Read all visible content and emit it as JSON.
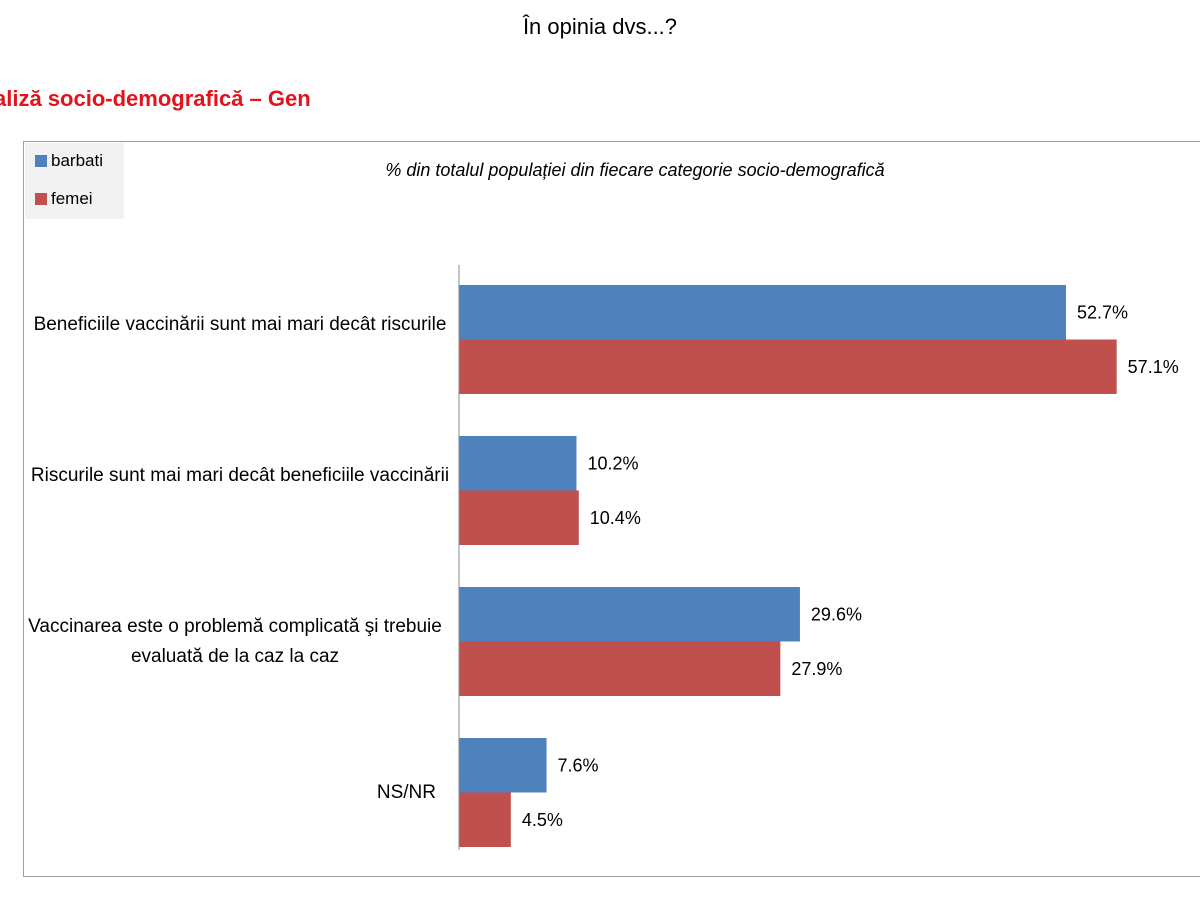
{
  "page_title": "În opinia dvs...?",
  "section_title": "aliză socio-demografică – Gen",
  "chart_data": {
    "type": "bar",
    "orientation": "horizontal",
    "subtitle": "% din totalul populației din fiecare categorie socio-demografică",
    "categories": [
      "Beneficiile vaccinării sunt mai mari decât riscurile",
      "Riscurile sunt mai mari decât beneficiile vaccinării",
      "Vaccinarea este o problemă complicată şi trebuie evaluată de la caz la caz",
      "NS/NR"
    ],
    "series": [
      {
        "name": "barbati",
        "color": "#4f81bd",
        "values": [
          52.7,
          10.2,
          29.6,
          7.6
        ],
        "labels": [
          "52.7%",
          "10.2%",
          "29.6%",
          "7.6%"
        ]
      },
      {
        "name": "femei",
        "color": "#c0504d",
        "values": [
          57.1,
          10.4,
          27.9,
          4.5
        ],
        "labels": [
          "57.1%",
          "10.4%",
          "27.9%",
          "4.5%"
        ]
      }
    ],
    "xlim": [
      0,
      60
    ],
    "legend_position": "top-left",
    "grid": false
  }
}
